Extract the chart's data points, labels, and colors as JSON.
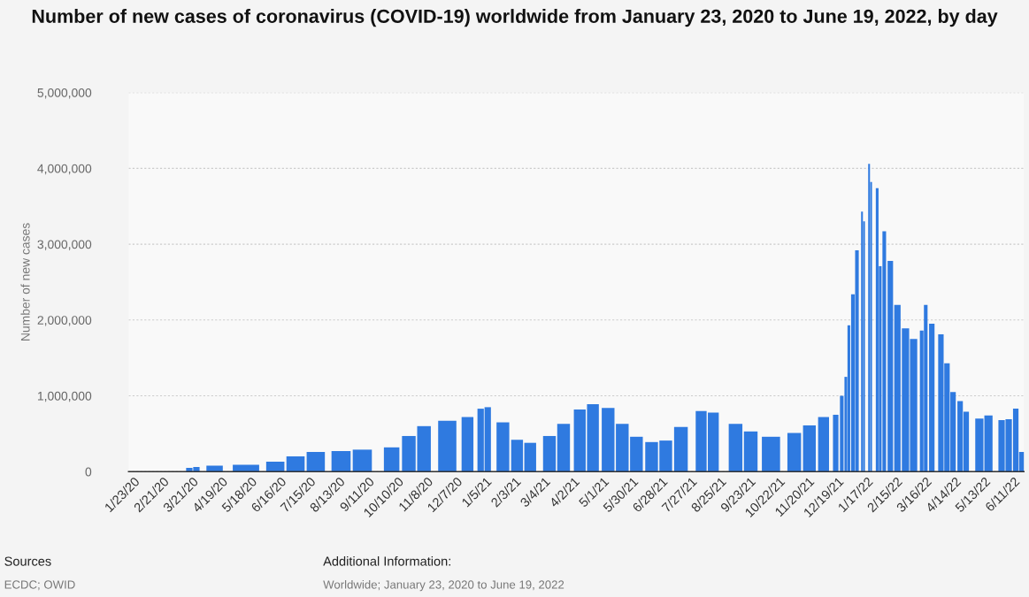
{
  "chart_data": {
    "type": "bar",
    "title": "Number of new cases of coronavirus (COVID-19) worldwide from January 23, 2020 to June 19, 2022, by day",
    "ylabel": "Number of new cases",
    "x": [
      "2020-01-23",
      "2020-03-01",
      "2020-03-18",
      "2020-03-25",
      "2020-04-12",
      "2020-05-13",
      "2020-06-11",
      "2020-07-01",
      "2020-07-21",
      "2020-08-15",
      "2020-09-05",
      "2020-10-04",
      "2020-10-21",
      "2020-11-05",
      "2020-11-28",
      "2020-12-18",
      "2020-12-31",
      "2021-01-07",
      "2021-01-22",
      "2021-02-05",
      "2021-02-18",
      "2021-03-09",
      "2021-03-23",
      "2021-04-08",
      "2021-04-21",
      "2021-05-06",
      "2021-05-20",
      "2021-06-03",
      "2021-06-18",
      "2021-07-02",
      "2021-07-17",
      "2021-08-06",
      "2021-08-18",
      "2021-09-09",
      "2021-09-24",
      "2021-10-14",
      "2021-11-06",
      "2021-11-21",
      "2021-12-05",
      "2021-12-17",
      "2021-12-23",
      "2021-12-27",
      "2021-12-30",
      "2022-01-03",
      "2022-01-07",
      "2022-01-12",
      "2022-01-14",
      "2022-01-19",
      "2022-01-21",
      "2022-01-27",
      "2022-01-30",
      "2022-02-03",
      "2022-02-09",
      "2022-02-16",
      "2022-02-24",
      "2022-03-04",
      "2022-03-12",
      "2022-03-16",
      "2022-03-22",
      "2022-03-31",
      "2022-04-06",
      "2022-04-12",
      "2022-04-19",
      "2022-04-25",
      "2022-05-08",
      "2022-05-17",
      "2022-05-30",
      "2022-06-06",
      "2022-06-13",
      "2022-06-19"
    ],
    "series": [
      {
        "color": "#2f7ae0",
        "values": [
          0,
          0,
          50000,
          60000,
          80000,
          90000,
          130000,
          200000,
          260000,
          270000,
          290000,
          320000,
          470000,
          600000,
          670000,
          720000,
          830000,
          850000,
          650000,
          420000,
          380000,
          470000,
          630000,
          820000,
          890000,
          840000,
          630000,
          460000,
          390000,
          410000,
          590000,
          800000,
          780000,
          630000,
          530000,
          460000,
          510000,
          610000,
          720000,
          750000,
          1000000,
          1250000,
          1930000,
          2340000,
          2920000,
          3430000,
          3300000,
          4060000,
          3820000,
          3740000,
          2710000,
          3170000,
          2780000,
          2200000,
          1890000,
          1750000,
          1860000,
          2200000,
          1950000,
          1810000,
          1430000,
          1050000,
          930000,
          790000,
          700000,
          740000,
          680000,
          690000,
          830000,
          260000
        ]
      }
    ],
    "xlim": [
      "2020-01-18",
      "2022-06-21"
    ],
    "xticks": [
      {
        "value": "2020-01-23",
        "label": "1/23/20"
      },
      {
        "value": "2020-02-21",
        "label": "2/21/20"
      },
      {
        "value": "2020-03-21",
        "label": "3/21/20"
      },
      {
        "value": "2020-04-19",
        "label": "4/19/20"
      },
      {
        "value": "2020-05-18",
        "label": "5/18/20"
      },
      {
        "value": "2020-06-16",
        "label": "6/16/20"
      },
      {
        "value": "2020-07-15",
        "label": "7/15/20"
      },
      {
        "value": "2020-08-13",
        "label": "8/13/20"
      },
      {
        "value": "2020-09-11",
        "label": "9/11/20"
      },
      {
        "value": "2020-10-10",
        "label": "10/10/20"
      },
      {
        "value": "2020-11-08",
        "label": "11/8/20"
      },
      {
        "value": "2020-12-07",
        "label": "12/7/20"
      },
      {
        "value": "2021-01-05",
        "label": "1/5/21"
      },
      {
        "value": "2021-02-03",
        "label": "2/3/21"
      },
      {
        "value": "2021-03-04",
        "label": "3/4/21"
      },
      {
        "value": "2021-04-02",
        "label": "4/2/21"
      },
      {
        "value": "2021-05-01",
        "label": "5/1/21"
      },
      {
        "value": "2021-05-30",
        "label": "5/30/21"
      },
      {
        "value": "2021-06-28",
        "label": "6/28/21"
      },
      {
        "value": "2021-07-27",
        "label": "7/27/21"
      },
      {
        "value": "2021-08-25",
        "label": "8/25/21"
      },
      {
        "value": "2021-09-23",
        "label": "9/23/21"
      },
      {
        "value": "2021-10-22",
        "label": "10/22/21"
      },
      {
        "value": "2021-11-20",
        "label": "11/20/21"
      },
      {
        "value": "2021-12-19",
        "label": "12/19/21"
      },
      {
        "value": "2022-01-17",
        "label": "1/17/22"
      },
      {
        "value": "2022-02-15",
        "label": "2/15/22"
      },
      {
        "value": "2022-03-16",
        "label": "3/16/22"
      },
      {
        "value": "2022-04-14",
        "label": "4/14/22"
      },
      {
        "value": "2022-05-13",
        "label": "5/13/22"
      },
      {
        "value": "2022-06-11",
        "label": "6/11/22"
      }
    ],
    "ylim": [
      0,
      5000000
    ],
    "yticks": [
      0,
      {
        "value": 1000000,
        "label": "1,000,000"
      },
      {
        "value": 2000000,
        "label": "2,000,000"
      },
      {
        "value": 3000000,
        "label": "3,000,000"
      },
      {
        "value": 4000000,
        "label": "4,000,000"
      },
      {
        "value": 5000000,
        "label": "5,000,000"
      }
    ],
    "grid": "y",
    "annotations": [
      "Sources",
      "ECDC; OWID",
      "Additional Information:",
      "Worldwide; January 23, 2020 to June 19, 2022"
    ]
  }
}
